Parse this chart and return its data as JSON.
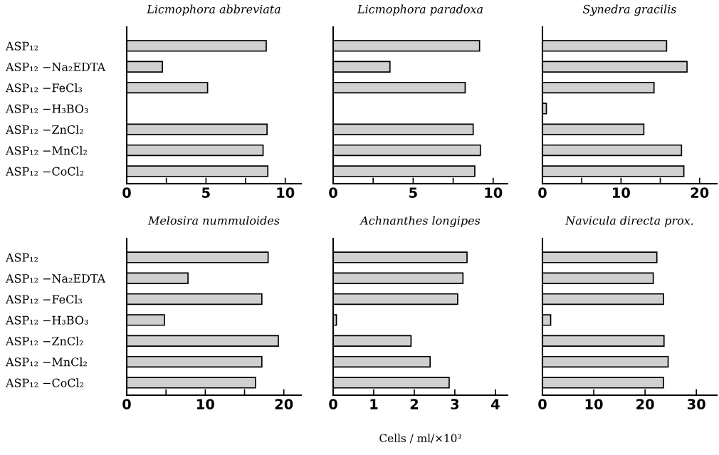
{
  "chart_data": [
    {
      "type": "bar",
      "orientation": "horizontal",
      "title": "Licmophora abbreviata",
      "categories": [
        "ASP₁₂",
        "ASP₁₂ −Na₂EDTA",
        "ASP₁₂ −FeCl₃",
        "ASP₁₂ −H₃BO₃",
        "ASP₁₂ −ZnCl₂",
        "ASP₁₂ −MnCl₂",
        "ASP₁₂ −CoCl₂"
      ],
      "values": [
        8.8,
        2.25,
        5.1,
        null,
        8.85,
        8.6,
        8.9
      ],
      "color": "#d0d0d0",
      "xlim": [
        0,
        11
      ],
      "xticks": [
        0,
        {
          "value": 2.5,
          "label": null
        },
        5,
        {
          "value": 7.5,
          "label": null
        },
        10
      ]
    },
    {
      "type": "bar",
      "orientation": "horizontal",
      "title": "Licmophora paradoxa",
      "categories": [
        null,
        null,
        null,
        null,
        null,
        null,
        null
      ],
      "values": [
        9.15,
        3.55,
        8.25,
        null,
        8.75,
        9.2,
        8.85
      ],
      "color": "#d0d0d0",
      "xlim": [
        0,
        10.9
      ],
      "xticks": [
        0,
        {
          "value": 2.5,
          "label": null
        },
        5,
        {
          "value": 7.5,
          "label": null
        },
        10
      ],
      "tick_labels": "x"
    },
    {
      "type": "bar",
      "orientation": "horizontal",
      "title": "Synedra gracilis",
      "categories": [
        null,
        null,
        null,
        null,
        null,
        null,
        null
      ],
      "values": [
        15.8,
        18.4,
        14.2,
        0.5,
        12.9,
        17.7,
        18.0
      ],
      "color": "#d0d0d0",
      "xlim": [
        0,
        22.2
      ],
      "xticks": [
        0,
        {
          "value": 5,
          "label": null
        },
        10,
        {
          "value": 15,
          "label": null
        },
        20
      ],
      "tick_labels": "x"
    },
    {
      "type": "bar",
      "orientation": "horizontal",
      "title": "Melosira nummuloides",
      "categories": [
        "ASP₁₂",
        "ASP₁₂ −Na₂EDTA",
        "ASP₁₂ −FeCl₃",
        "ASP₁₂ −H₃BO₃",
        "ASP₁₂ −ZnCl₂",
        "ASP₁₂ −MnCl₂",
        "ASP₁₂ −CoCl₂"
      ],
      "values": [
        18.0,
        7.8,
        17.2,
        4.8,
        19.3,
        17.2,
        16.4
      ],
      "color": "#d0d0d0",
      "xlim": [
        0,
        22.2
      ],
      "xticks": [
        0,
        {
          "value": 5,
          "label": null
        },
        10,
        {
          "value": 15,
          "label": null
        },
        20
      ]
    },
    {
      "type": "bar",
      "orientation": "horizontal",
      "title": "Achnanthes longipes",
      "categories": [
        null,
        null,
        null,
        null,
        null,
        null,
        null
      ],
      "values": [
        3.3,
        3.2,
        3.07,
        0.08,
        1.92,
        2.39,
        2.86
      ],
      "color": "#d0d0d0",
      "xlim": [
        0,
        4.3
      ],
      "xticks": [
        0,
        1,
        2,
        3,
        4
      ],
      "tick_labels": "x",
      "xlabel": "Cells / ml/×10³"
    },
    {
      "type": "bar",
      "orientation": "horizontal",
      "title": "Navicula directa prox.",
      "categories": [
        null,
        null,
        null,
        null,
        null,
        null,
        null
      ],
      "values": [
        22.3,
        21.6,
        23.6,
        1.6,
        23.7,
        24.5,
        23.6
      ],
      "color": "#d0d0d0",
      "xlim": [
        0,
        34
      ],
      "xticks": [
        0,
        10,
        20,
        30
      ],
      "tick_labels": "x"
    }
  ]
}
